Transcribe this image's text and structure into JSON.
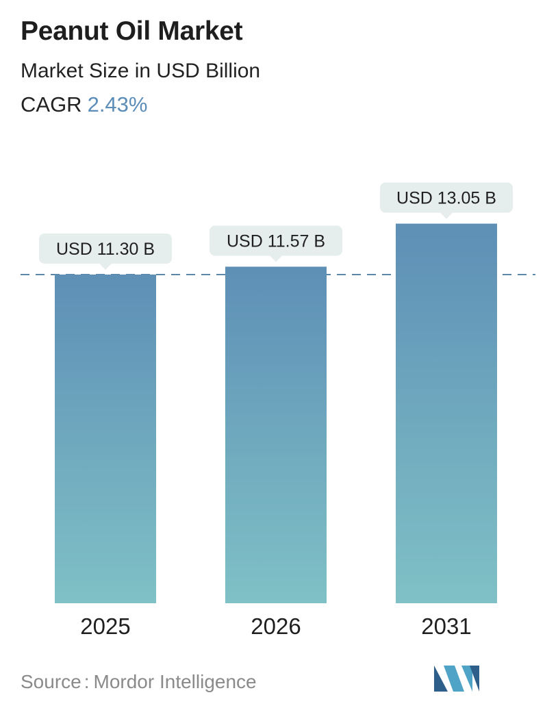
{
  "header": {
    "title": "Peanut Oil Market",
    "subtitle": "Market Size in USD Billion",
    "cagr_label": "CAGR",
    "cagr_value": "2.43%"
  },
  "chart_data": {
    "type": "bar",
    "title": "Peanut Oil Market",
    "subtitle": "Market Size in USD Billion",
    "categories": [
      "2025",
      "2026",
      "2031"
    ],
    "values": [
      11.3,
      11.57,
      13.05
    ],
    "value_labels": [
      "USD 11.30 B",
      "USD 11.57 B",
      "USD 13.05 B"
    ],
    "xlabel": "",
    "ylabel": "",
    "ylim": [
      0,
      14
    ],
    "grid": false,
    "reference_line": {
      "value": 11.3,
      "style": "dashed"
    },
    "colors": {
      "bar_top": "#5e8fb6",
      "bar_bottom": "#7fc1c6",
      "label_bg": "#e6eded",
      "reference_line": "#5b87a8"
    }
  },
  "footer": {
    "source_label": "Source",
    "source_separator": ":",
    "source_value": "Mordor Intelligence",
    "logo_icon": "mordor-intelligence-logo-icon",
    "logo_colors": [
      "#2e5f8a",
      "#4fa3c7"
    ]
  }
}
